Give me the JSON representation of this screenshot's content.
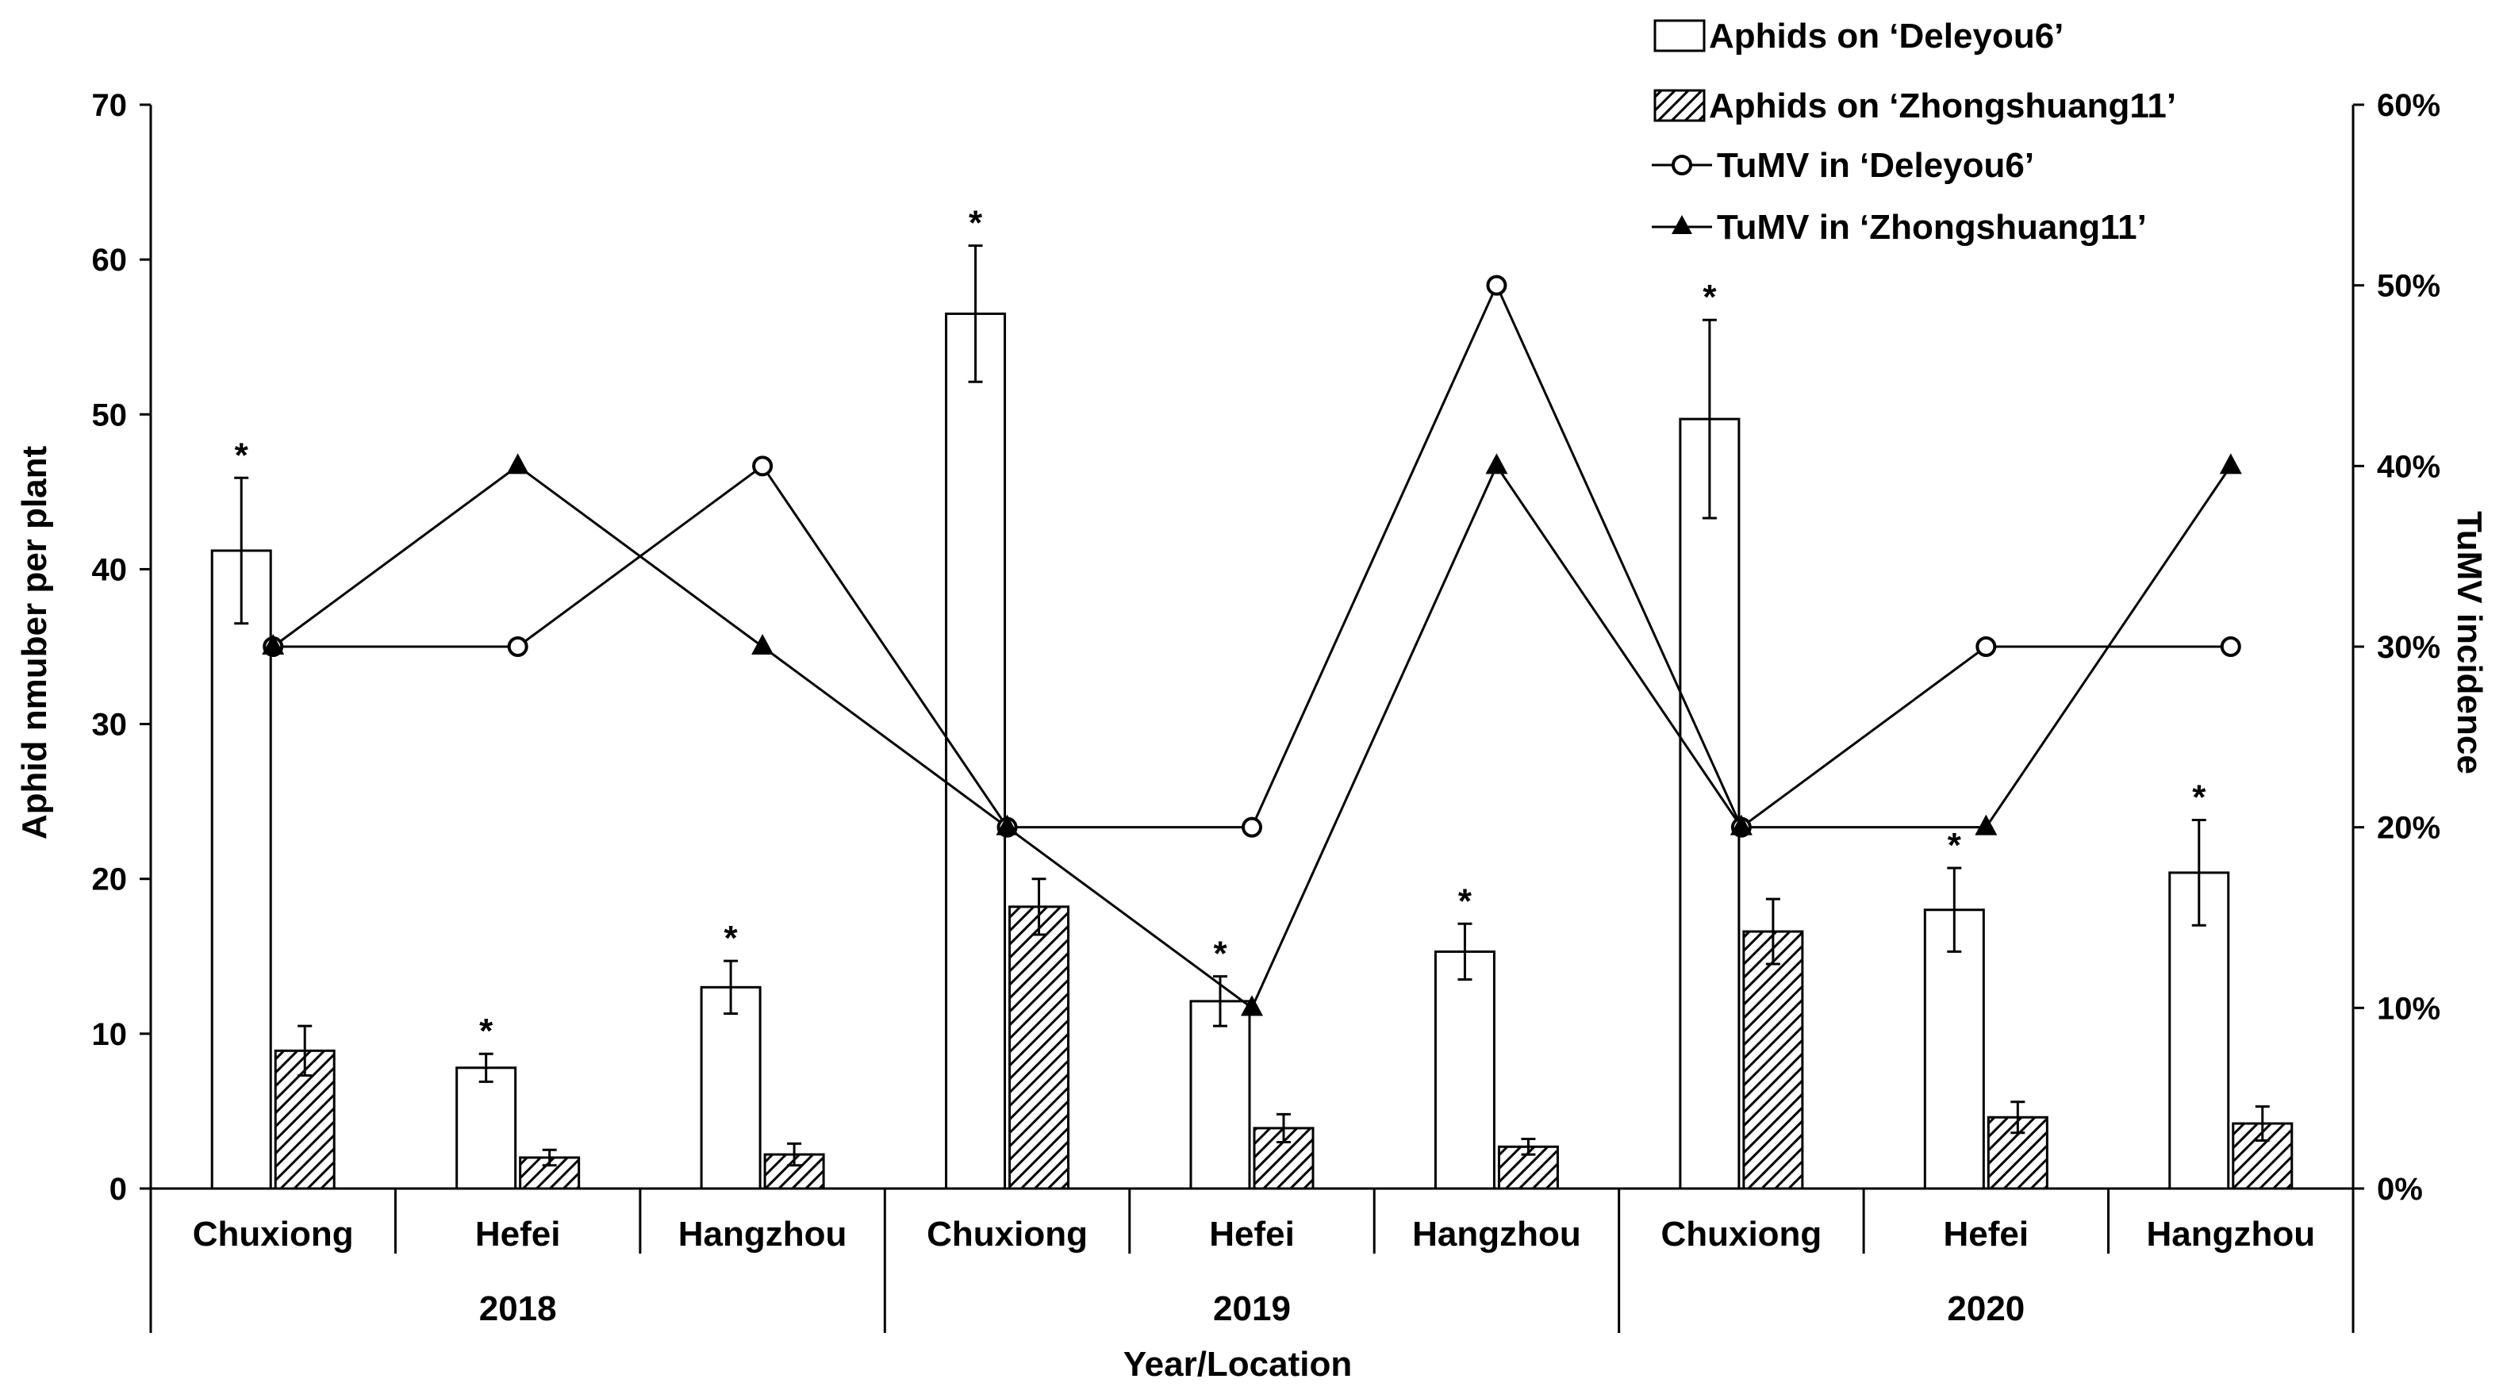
{
  "chart_data": {
    "type": "bar",
    "title": "",
    "xlabel": "Year/Location",
    "ylabel": "Aphid nmuber per plant",
    "y2label": "TuMV incidence",
    "ylim": [
      0,
      70
    ],
    "y2lim": [
      0,
      0.6
    ],
    "yticks": [
      0,
      10,
      20,
      30,
      40,
      50,
      60,
      70
    ],
    "y2ticks": [
      0,
      0.1,
      0.2,
      0.3,
      0.4,
      0.5,
      0.6
    ],
    "y2tick_labels": [
      "0%",
      "10%",
      "20%",
      "30%",
      "40%",
      "50%",
      "60%"
    ],
    "categories": [
      "Chuxiong",
      "Hefei",
      "Hangzhou",
      "Chuxiong",
      "Hefei",
      "Hangzhou",
      "Chuxiong",
      "Hefei",
      "Hangzhou"
    ],
    "groups": [
      {
        "label": "2018",
        "span": [
          0,
          2
        ]
      },
      {
        "label": "2019",
        "span": [
          3,
          5
        ]
      },
      {
        "label": "2020",
        "span": [
          6,
          8
        ]
      }
    ],
    "significance": [
      "*",
      "*",
      "*",
      "*",
      "*",
      "*",
      "*",
      "*",
      "*"
    ],
    "series": [
      {
        "name": "Aphids on ‘Deleyou6’",
        "kind": "bar",
        "pattern": "open",
        "values": [
          41.2,
          7.8,
          13.0,
          56.5,
          12.1,
          15.3,
          49.7,
          18.0,
          20.4
        ],
        "errors": [
          4.7,
          0.9,
          1.7,
          4.4,
          1.6,
          1.8,
          6.4,
          2.7,
          3.4
        ]
      },
      {
        "name": "Aphids on ‘Zhongshuang11’",
        "kind": "bar",
        "pattern": "hatched",
        "values": [
          8.9,
          2.0,
          2.2,
          18.2,
          3.9,
          2.7,
          16.6,
          4.6,
          4.2
        ],
        "errors": [
          1.6,
          0.5,
          0.7,
          1.8,
          0.9,
          0.5,
          2.1,
          1.0,
          1.1
        ]
      },
      {
        "name": "TuMV in ‘Deleyou6’",
        "kind": "line",
        "marker": "open-circle",
        "values": [
          0.3,
          0.3,
          0.4,
          0.2,
          0.2,
          0.5,
          0.2,
          0.3,
          0.3
        ]
      },
      {
        "name": "TuMV in ‘Zhongshuang11’",
        "kind": "line",
        "marker": "filled-triangle",
        "values": [
          0.3,
          0.4,
          0.3,
          0.2,
          0.1,
          0.4,
          0.2,
          0.2,
          0.4
        ]
      }
    ],
    "legend_position": "top-right"
  }
}
